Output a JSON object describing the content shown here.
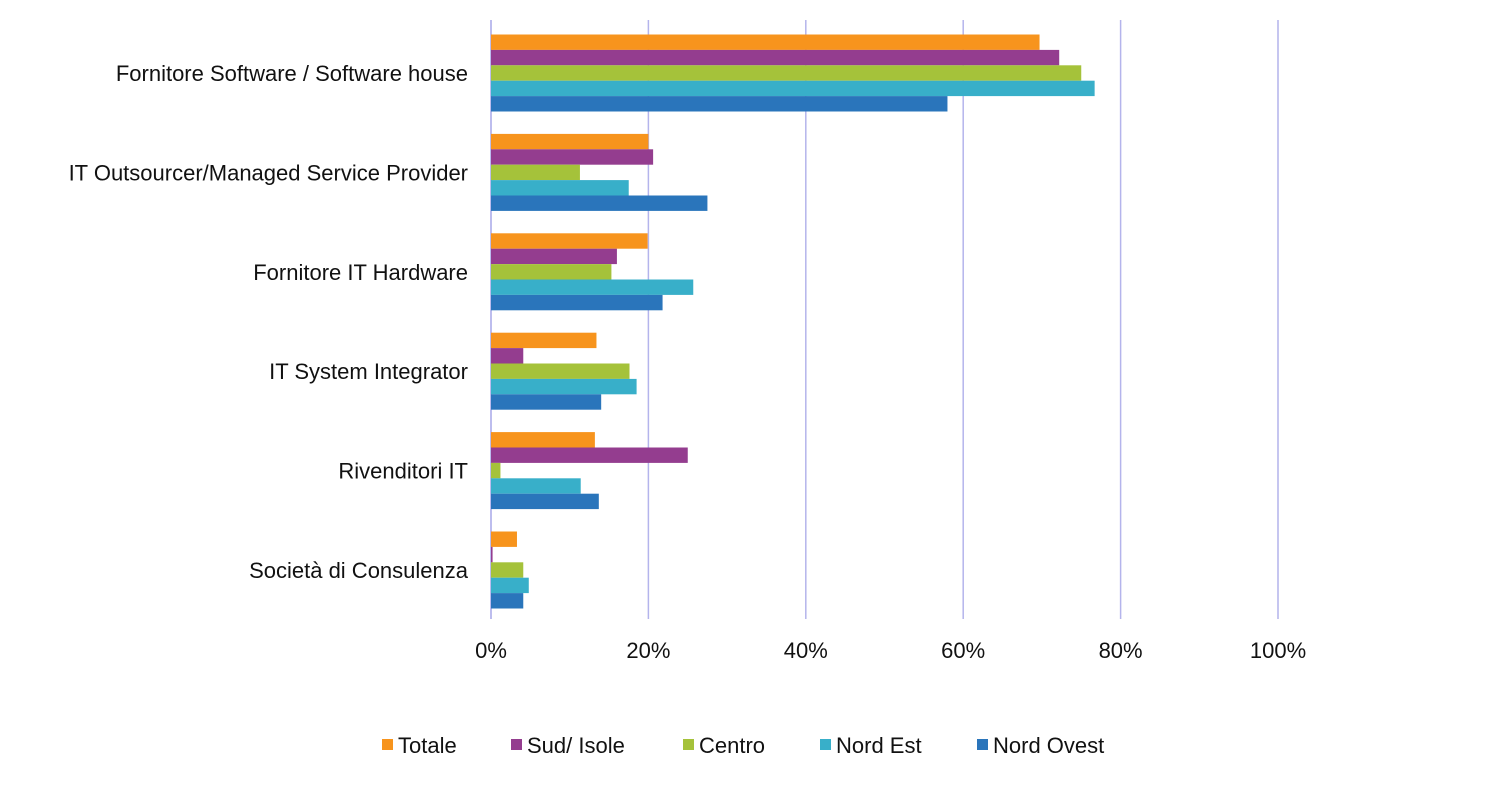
{
  "chart_data": {
    "type": "bar",
    "orientation": "horizontal",
    "title": "",
    "xlabel": "",
    "ylabel": "",
    "xlim": [
      0,
      100
    ],
    "x_ticks": [
      "0%",
      "20%",
      "40%",
      "60%",
      "80%",
      "100%"
    ],
    "grid": true,
    "legend_position": "bottom",
    "categories": [
      "Fornitore Software / Software house",
      "IT Outsourcer/Managed Service Provider",
      "Fornitore IT Hardware",
      "IT System Integrator",
      "Rivenditori IT",
      "Società di Consulenza"
    ],
    "series": [
      {
        "name": "Totale",
        "color": "#f7941d",
        "values": [
          69.7,
          20.0,
          19.9,
          13.4,
          13.2,
          3.3
        ]
      },
      {
        "name": "Sud/ Isole",
        "color": "#943d8f",
        "values": [
          72.2,
          20.6,
          16.0,
          4.1,
          25.0,
          0.2
        ]
      },
      {
        "name": "Centro",
        "color": "#a5c23a",
        "values": [
          75.0,
          11.3,
          15.3,
          17.6,
          1.2,
          4.1
        ]
      },
      {
        "name": "Nord Est",
        "color": "#38afc9",
        "values": [
          76.7,
          17.5,
          25.7,
          18.5,
          11.4,
          4.8
        ]
      },
      {
        "name": "Nord Ovest",
        "color": "#2a75bb",
        "values": [
          58.0,
          27.5,
          21.8,
          14.0,
          13.7,
          4.1
        ]
      }
    ]
  }
}
